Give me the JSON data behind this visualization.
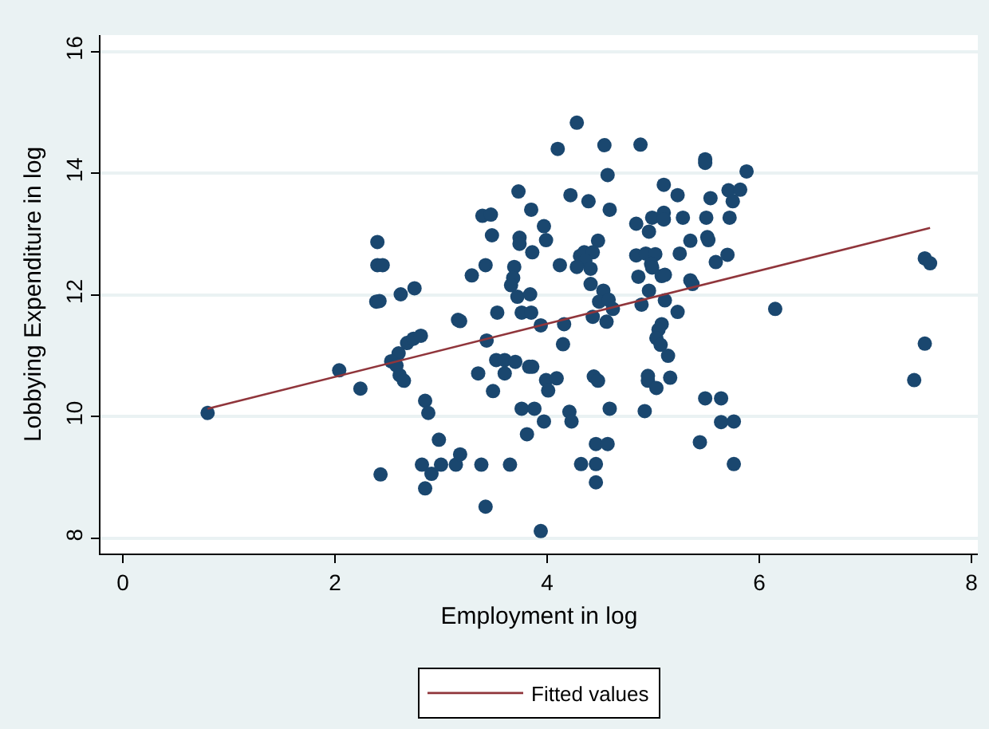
{
  "chart_data": {
    "type": "scatter",
    "xlabel": "Employment in log",
    "ylabel": "Lobbying Expenditure in log",
    "xlim": [
      -0.21,
      8.06
    ],
    "ylim": [
      7.75,
      16.27
    ],
    "xticks": [
      0,
      2,
      4,
      6,
      8
    ],
    "yticks": [
      8,
      10,
      12,
      14,
      16
    ],
    "grid": "y",
    "legend": "bottom",
    "marker": "circle",
    "series": [
      {
        "color": "#1a476f",
        "x": [
          3.73,
          3.39,
          3.47,
          3.48,
          3.74,
          3.74,
          2.4,
          2.4,
          2.45,
          3.42,
          3.29,
          3.69,
          3.68,
          3.66,
          3.72,
          3.84,
          2.39,
          2.42,
          2.62,
          2.75,
          3.16,
          3.18,
          3.53,
          3.76,
          3.85,
          3.43,
          2.68,
          2.74,
          2.81,
          2.6,
          2.53,
          2.58,
          2.04,
          2.61,
          2.65,
          2.24,
          3.35,
          3.52,
          3.6,
          3.7,
          3.6,
          3.83,
          3.86,
          3.49,
          0.8,
          2.85,
          2.88,
          3.76,
          3.88,
          3.81,
          2.98,
          2.43,
          2.82,
          2.91,
          3.0,
          2.85,
          3.14,
          3.18,
          3.38,
          3.65,
          3.42,
          4.28,
          4.1,
          4.54,
          4.88,
          5.49,
          5.49,
          5.88,
          4.57,
          5.1,
          5.71,
          5.82,
          4.22,
          4.39,
          5.23,
          5.54,
          5.75,
          3.85,
          4.59,
          3.97,
          3.99,
          3.86,
          4.84,
          4.99,
          5.1,
          5.1,
          5.28,
          5.5,
          5.72,
          4.96,
          5.51,
          5.52,
          5.35,
          4.48,
          4.31,
          4.35,
          4.43,
          4.36,
          4.28,
          4.41,
          4.12,
          4.84,
          4.93,
          5.02,
          4.98,
          4.99,
          4.86,
          5.08,
          5.11,
          5.25,
          5.59,
          5.7,
          4.41,
          5.35,
          5.37,
          4.53,
          4.49,
          4.58,
          4.62,
          4.96,
          5.11,
          4.89,
          6.15,
          3.94,
          4.16,
          4.43,
          4.56,
          5.23,
          5.08,
          5.05,
          5.03,
          5.07,
          4.15,
          5.14,
          3.99,
          4.09,
          4.01,
          4.44,
          4.48,
          4.95,
          4.95,
          5.03,
          5.16,
          4.59,
          4.21,
          4.23,
          3.97,
          4.92,
          5.49,
          5.64,
          5.64,
          5.76,
          4.46,
          4.57,
          5.44,
          4.32,
          4.46,
          5.76,
          4.46,
          3.94,
          7.56,
          7.61,
          7.56,
          7.46
        ],
        "values": [
          13.7,
          13.3,
          13.32,
          12.98,
          12.94,
          12.84,
          12.87,
          12.49,
          12.49,
          12.49,
          12.32,
          12.46,
          12.28,
          12.16,
          11.97,
          12.01,
          11.89,
          11.9,
          12.01,
          12.11,
          11.59,
          11.57,
          11.71,
          11.71,
          11.71,
          11.25,
          11.21,
          11.28,
          11.33,
          11.04,
          10.91,
          10.84,
          10.76,
          10.68,
          10.59,
          10.46,
          10.71,
          10.93,
          10.93,
          10.9,
          10.71,
          10.82,
          10.82,
          10.42,
          10.06,
          10.26,
          10.06,
          10.13,
          10.13,
          9.71,
          9.62,
          9.05,
          9.21,
          9.06,
          9.21,
          8.82,
          9.21,
          9.38,
          9.21,
          9.21,
          8.52,
          14.83,
          14.4,
          14.46,
          14.47,
          14.23,
          14.17,
          14.03,
          13.97,
          13.81,
          13.72,
          13.73,
          13.64,
          13.54,
          13.64,
          13.59,
          13.54,
          13.4,
          13.4,
          13.13,
          12.9,
          12.7,
          13.17,
          13.27,
          13.35,
          13.24,
          13.27,
          13.27,
          13.27,
          13.04,
          12.95,
          12.9,
          12.89,
          12.89,
          12.64,
          12.7,
          12.7,
          12.56,
          12.46,
          12.43,
          12.49,
          12.65,
          12.68,
          12.67,
          12.51,
          12.45,
          12.3,
          12.31,
          12.33,
          12.68,
          12.54,
          12.66,
          12.18,
          12.24,
          12.18,
          12.07,
          11.89,
          11.92,
          11.77,
          12.07,
          11.91,
          11.84,
          11.77,
          11.5,
          11.52,
          11.64,
          11.56,
          11.72,
          11.52,
          11.43,
          11.29,
          11.18,
          11.19,
          11.0,
          10.6,
          10.63,
          10.43,
          10.66,
          10.59,
          10.67,
          10.59,
          10.47,
          10.64,
          10.13,
          10.08,
          9.92,
          9.92,
          10.09,
          10.3,
          10.3,
          9.91,
          9.92,
          9.55,
          9.55,
          9.58,
          9.22,
          9.22,
          9.22,
          8.92,
          8.12,
          12.6,
          12.52,
          11.2,
          10.6
        ]
      },
      {
        "type": "line",
        "name": "Fitted values",
        "color": "#90353b",
        "marker": "none",
        "line_style": "solid",
        "x": [
          0.8,
          7.61
        ],
        "values": [
          10.13,
          13.1
        ]
      }
    ]
  }
}
